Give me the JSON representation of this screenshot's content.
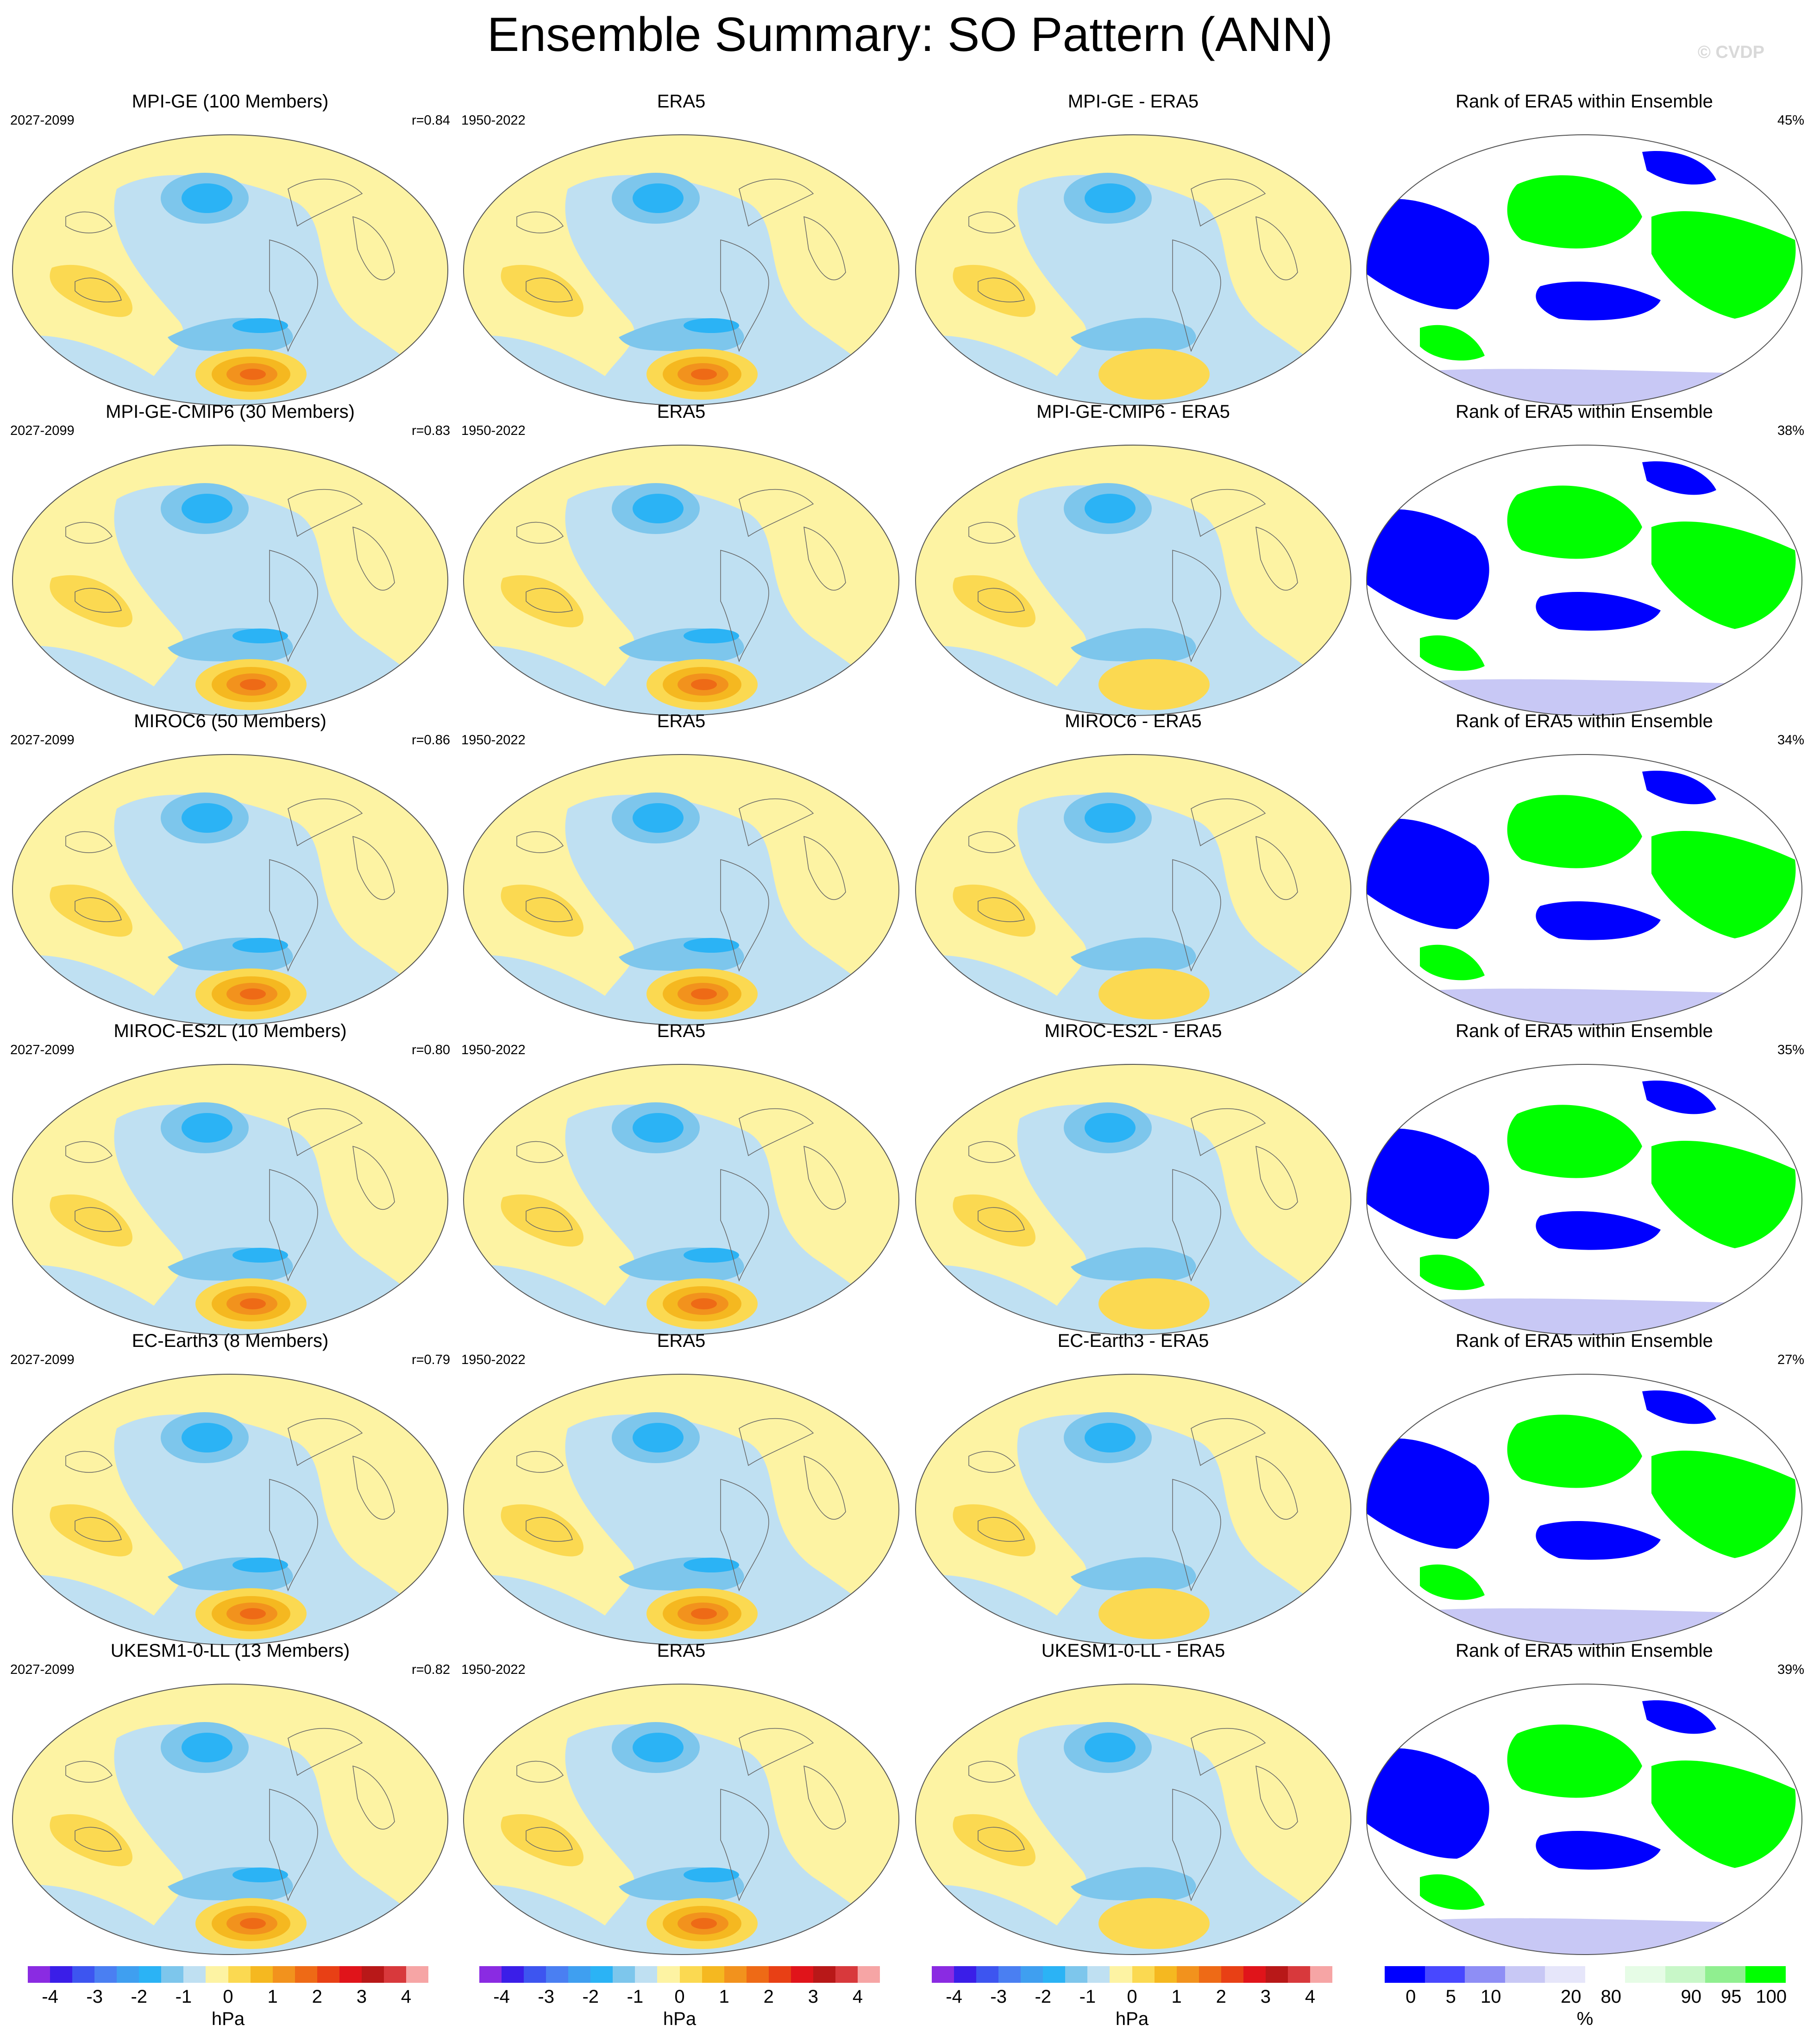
{
  "title": "Ensemble Summary: SO Pattern (ANN)",
  "watermark": "© CVDP",
  "rows": [
    {
      "model_title": "MPI-GE (100 Members)",
      "model_years": "2027-2099",
      "r": "r=0.84",
      "obs_title": "ERA5",
      "obs_years": "1950-2022",
      "diff_title": "MPI-GE - ERA5",
      "rank_title": "Rank of ERA5 within Ensemble",
      "rank_pct": "45%"
    },
    {
      "model_title": "MPI-GE-CMIP6 (30 Members)",
      "model_years": "2027-2099",
      "r": "r=0.83",
      "obs_title": "ERA5",
      "obs_years": "1950-2022",
      "diff_title": "MPI-GE-CMIP6 - ERA5",
      "rank_title": "Rank of ERA5 within Ensemble",
      "rank_pct": "38%"
    },
    {
      "model_title": "MIROC6 (50 Members)",
      "model_years": "2027-2099",
      "r": "r=0.86",
      "obs_title": "ERA5",
      "obs_years": "1950-2022",
      "diff_title": "MIROC6 - ERA5",
      "rank_title": "Rank of ERA5 within Ensemble",
      "rank_pct": "34%"
    },
    {
      "model_title": "MIROC-ES2L (10 Members)",
      "model_years": "2027-2099",
      "r": "r=0.80",
      "obs_title": "ERA5",
      "obs_years": "1950-2022",
      "diff_title": "MIROC-ES2L - ERA5",
      "rank_title": "Rank of ERA5 within Ensemble",
      "rank_pct": "35%"
    },
    {
      "model_title": "EC-Earth3 (8 Members)",
      "model_years": "2027-2099",
      "r": "r=0.79",
      "obs_title": "ERA5",
      "obs_years": "1950-2022",
      "diff_title": "EC-Earth3 - ERA5",
      "rank_title": "Rank of ERA5 within Ensemble",
      "rank_pct": "27%"
    },
    {
      "model_title": "UKESM1-0-LL (13 Members)",
      "model_years": "2027-2099",
      "r": "r=0.82",
      "obs_title": "ERA5",
      "obs_years": "1950-2022",
      "diff_title": "UKESM1-0-LL - ERA5",
      "rank_title": "Rank of ERA5 within Ensemble",
      "rank_pct": "39%"
    }
  ],
  "colorbar_hpa": {
    "unit": "hPa",
    "colors": [
      "#8a2be2",
      "#3a1ee8",
      "#3d55f0",
      "#4a7ff2",
      "#3f9ff0",
      "#2bb3f5",
      "#7dc6ec",
      "#bfe0f2",
      "#fdf3a3",
      "#fbd951",
      "#f5b820",
      "#f2921d",
      "#ee6a16",
      "#e84015",
      "#e0141a",
      "#b81818",
      "#d8393c",
      "#f6a5a5"
    ],
    "labels": [
      "-4",
      "-3",
      "-2",
      "-1",
      "0",
      "1",
      "2",
      "3",
      "4"
    ]
  },
  "colorbar_rank": {
    "unit": "%",
    "colors": [
      "#0000ff",
      "#4848ff",
      "#8e8ef5",
      "#c8c8f5",
      "#e6e6fa",
      "#ffffff",
      "#e6fce6",
      "#c8f7c8",
      "#90ef90",
      "#00ff00"
    ],
    "labels": [
      "0",
      "5",
      "10",
      "20",
      "80",
      "90",
      "95",
      "100"
    ]
  },
  "map_colors": {
    "pos1": "#fdf3a3",
    "pos2": "#fbd951",
    "pos3": "#f5b820",
    "pos4": "#f2921d",
    "pos5": "#ee6a16",
    "pos6": "#e84015",
    "neg1": "#bfe0f2",
    "neg2": "#7dc6ec",
    "neg3": "#2bb3f5",
    "rank_low": "#0000ff",
    "rank_mid": "#c8c8f5",
    "rank_high": "#00ff00",
    "rank_white": "#ffffff"
  }
}
